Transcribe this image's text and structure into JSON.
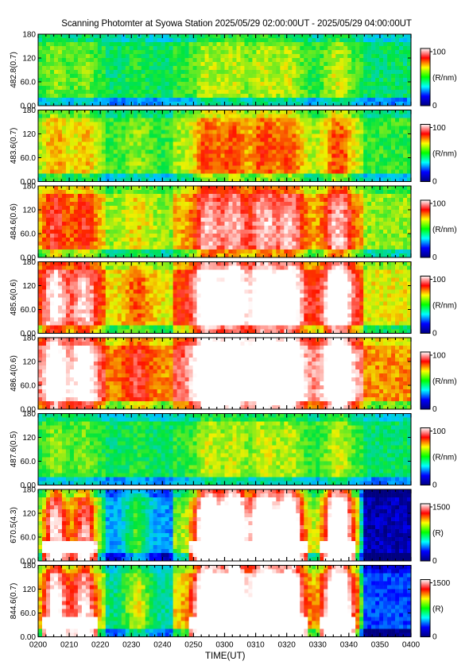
{
  "title": "Scanning Photomter at Syowa Station 2025/05/29 02:00:00UT - 2025/05/29 04:00:00UT",
  "chart_data": {
    "type": "heatmap",
    "xlabel": "TIME(UT)",
    "x_ticks": [
      "0200",
      "0210",
      "0220",
      "0230",
      "0240",
      "0250",
      "0300",
      "0310",
      "0320",
      "0330",
      "0340",
      "0350",
      "0400"
    ],
    "x_range": [
      "02:00",
      "04:00"
    ],
    "y_ticks": [
      "0.00",
      "60.0",
      "120",
      "180"
    ],
    "y_range": [
      0,
      180
    ],
    "colormap": [
      "#000080",
      "#0000ff",
      "#00ffff",
      "#00ff00",
      "#ffff00",
      "#ff0000",
      "#ffffff"
    ],
    "panels": [
      {
        "ylabel": "482.8(0.7)",
        "cbar_ticks": [
          "0",
          "100"
        ],
        "cbar_unit": "(R/nm)",
        "intensity": "low"
      },
      {
        "ylabel": "483.6(0.7)",
        "cbar_ticks": [
          "0",
          "100"
        ],
        "cbar_unit": "(R/nm)",
        "intensity": "low-mid"
      },
      {
        "ylabel": "484.6(0.6)",
        "cbar_ticks": [
          "0",
          "100"
        ],
        "cbar_unit": "(R/nm)",
        "intensity": "mid"
      },
      {
        "ylabel": "485.6(0.6)",
        "cbar_ticks": [
          "0",
          "100"
        ],
        "cbar_unit": "(R/nm)",
        "intensity": "high"
      },
      {
        "ylabel": "486.4(0.6)",
        "cbar_ticks": [
          "0",
          "100"
        ],
        "cbar_unit": "(R/nm)",
        "intensity": "very-high"
      },
      {
        "ylabel": "487.6(0.5)",
        "cbar_ticks": [
          "0",
          "100"
        ],
        "cbar_unit": "(R/nm)",
        "intensity": "low"
      },
      {
        "ylabel": "670.5(4.3)",
        "cbar_ticks": [
          "0",
          "1500"
        ],
        "cbar_unit": "(R)",
        "intensity": "arcs-blue"
      },
      {
        "ylabel": "844.6(0.7)",
        "cbar_ticks": [
          "0",
          "1500"
        ],
        "cbar_unit": "(R)",
        "intensity": "arcs-green"
      }
    ]
  }
}
